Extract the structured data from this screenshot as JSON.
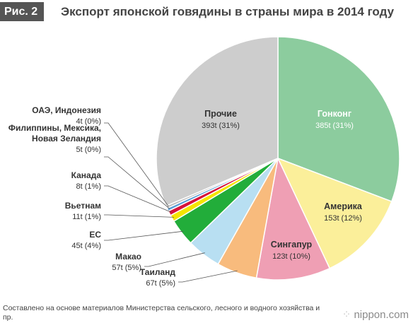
{
  "header": {
    "figure_label": "Рис. 2",
    "title": "Экспорт японской говядины в страны мира в 2014 году"
  },
  "chart_data": {
    "type": "pie",
    "title": "Экспорт японской говядины в страны мира в 2014 году",
    "slices": [
      {
        "name": "Гонконг",
        "value": 385,
        "value_label": "385t (31%)",
        "color": "#8ccc9e"
      },
      {
        "name": "Америка",
        "value": 153,
        "value_label": "153t (12%)",
        "color": "#fbef9a"
      },
      {
        "name": "Сингапур",
        "value": 123,
        "value_label": "123t (10%)",
        "color": "#ef9fb4"
      },
      {
        "name": "Таиланд",
        "value": 67,
        "value_label": "67t (5%)",
        "color": "#f8bb7d"
      },
      {
        "name": "Макао",
        "value": 57,
        "value_label": "57t (5%)",
        "color": "#b8dff2"
      },
      {
        "name": "ЕС",
        "value": 45,
        "value_label": "45t (4%)",
        "color": "#22ad3a"
      },
      {
        "name": "Вьетнам",
        "value": 11,
        "value_label": "11t (1%)",
        "color": "#f5e500"
      },
      {
        "name": "Канада",
        "value": 8,
        "value_label": "8t (1%)",
        "color": "#d6113a"
      },
      {
        "name": "Филиппины, Мексика, Новая Зеландия",
        "name_lines": [
          "Филиппины, Мексика,",
          "Новая Зеландия"
        ],
        "value": 5,
        "value_label": "5t (0%)",
        "color": "#5a9fd6"
      },
      {
        "name": "ОАЭ, Индонезия",
        "value": 4,
        "value_label": "4t (0%)",
        "color": "#b9b9b9"
      },
      {
        "name": "Прочие",
        "value": 393,
        "value_label": "393t (31%)",
        "color": "#cdcdcd"
      }
    ]
  },
  "footer": {
    "source": "Составлено на основе материалов Министерства сельского, лесного и водного хозяйства и пр.",
    "logo": "nippon.com"
  }
}
